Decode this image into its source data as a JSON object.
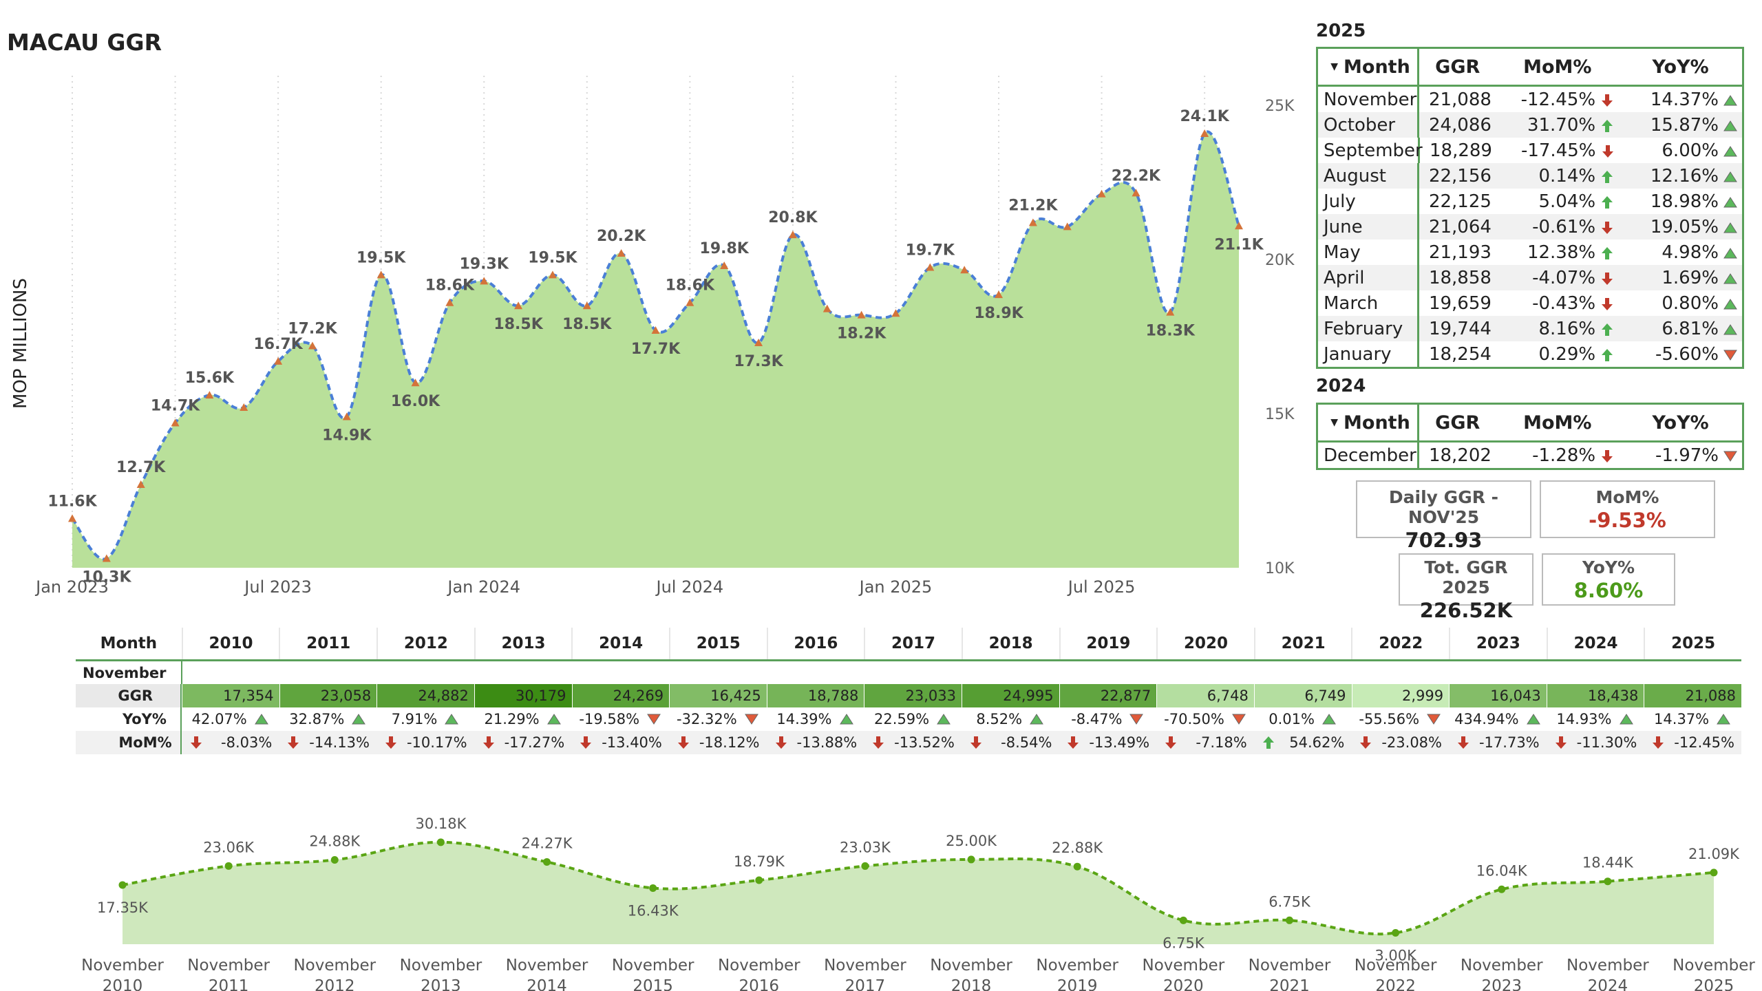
{
  "title": "MACAU GGR",
  "colors": {
    "area_fill": "#b9e09a",
    "line": "#4a7fd6",
    "marker": "#d4733a",
    "table_border": "#5aa05a",
    "down": "#c0392b",
    "up": "#4caf50",
    "bottom_line": "#5aa514",
    "bottom_fill": "#cfe8bd"
  },
  "chart_data": [
    {
      "type": "area",
      "title": "MACAU GGR",
      "ylabel": "MOP MILLIONS",
      "xlabel": "",
      "ylim": [
        10000,
        25000
      ],
      "yticks": [
        "10K",
        "15K",
        "20K",
        "25K"
      ],
      "xtick_labels": [
        "Jan 2023",
        "Jul 2023",
        "Jan 2024",
        "Jul 2024",
        "Jan 2025",
        "Jul 2025"
      ],
      "x": [
        "2023-01",
        "2023-02",
        "2023-03",
        "2023-04",
        "2023-05",
        "2023-06",
        "2023-07",
        "2023-08",
        "2023-09",
        "2023-10",
        "2023-11",
        "2023-12",
        "2024-01",
        "2024-02",
        "2024-03",
        "2024-04",
        "2024-05",
        "2024-06",
        "2024-07",
        "2024-08",
        "2024-09",
        "2024-10",
        "2024-11",
        "2024-12",
        "2025-01",
        "2025-02",
        "2025-03",
        "2025-04",
        "2025-05",
        "2025-06",
        "2025-07",
        "2025-08",
        "2025-09",
        "2025-10",
        "2025-11"
      ],
      "values": [
        11600,
        10300,
        12700,
        14700,
        15600,
        15200,
        16700,
        17200,
        14900,
        19500,
        16000,
        18600,
        19300,
        18500,
        19500,
        18500,
        20200,
        17700,
        18600,
        19800,
        17300,
        20800,
        18400,
        18200,
        18254,
        19744,
        19659,
        18858,
        21193,
        21064,
        22125,
        22156,
        18289,
        24086,
        21088
      ],
      "data_labels": [
        "11.6K",
        "10.3K",
        "12.7K",
        "14.7K",
        "15.6K",
        "",
        "16.7K",
        "17.2K",
        "14.9K",
        "19.5K",
        "16.0K",
        "18.6K",
        "19.3K",
        "18.5K",
        "19.5K",
        "18.5K",
        "20.2K",
        "17.7K",
        "18.6K",
        "19.8K",
        "17.3K",
        "20.8K",
        "",
        "18.2K",
        "",
        "19.7K",
        "",
        "18.9K",
        "21.2K",
        "",
        "",
        "22.2K",
        "18.3K",
        "24.1K",
        "21.1K"
      ]
    },
    {
      "type": "area",
      "title": "",
      "categories": [
        "November 2010",
        "November 2011",
        "November 2012",
        "November 2013",
        "November 2014",
        "November 2015",
        "November 2016",
        "November 2017",
        "November 2018",
        "November 2019",
        "November 2020",
        "November 2021",
        "November 2022",
        "November 2023",
        "November 2024",
        "November 2025"
      ],
      "values": [
        17354,
        23058,
        24882,
        30179,
        24269,
        16425,
        18788,
        23033,
        24995,
        22877,
        6748,
        6749,
        2999,
        16043,
        18438,
        21088
      ],
      "data_labels": [
        "17.35K",
        "23.06K",
        "24.88K",
        "30.18K",
        "24.27K",
        "16.43K",
        "18.79K",
        "23.03K",
        "25.00K",
        "22.88K",
        "6.75K",
        "6.75K",
        "3.00K",
        "16.04K",
        "18.44K",
        "21.09K"
      ]
    }
  ],
  "table_2025": {
    "year": "2025",
    "headers": {
      "month": "Month",
      "ggr": "GGR",
      "mom": "MoM%",
      "yoy": "YoY%"
    },
    "rows": [
      {
        "month": "November",
        "ggr": "21,088",
        "mom": "-12.45%",
        "mom_dir": "down",
        "yoy": "14.37%",
        "yoy_dir": "up"
      },
      {
        "month": "October",
        "ggr": "24,086",
        "mom": "31.70%",
        "mom_dir": "up",
        "yoy": "15.87%",
        "yoy_dir": "up"
      },
      {
        "month": "September",
        "ggr": "18,289",
        "mom": "-17.45%",
        "mom_dir": "down",
        "yoy": "6.00%",
        "yoy_dir": "up"
      },
      {
        "month": "August",
        "ggr": "22,156",
        "mom": "0.14%",
        "mom_dir": "up",
        "yoy": "12.16%",
        "yoy_dir": "up"
      },
      {
        "month": "July",
        "ggr": "22,125",
        "mom": "5.04%",
        "mom_dir": "up",
        "yoy": "18.98%",
        "yoy_dir": "up"
      },
      {
        "month": "June",
        "ggr": "21,064",
        "mom": "-0.61%",
        "mom_dir": "down",
        "yoy": "19.05%",
        "yoy_dir": "up"
      },
      {
        "month": "May",
        "ggr": "21,193",
        "mom": "12.38%",
        "mom_dir": "up",
        "yoy": "4.98%",
        "yoy_dir": "up"
      },
      {
        "month": "April",
        "ggr": "18,858",
        "mom": "-4.07%",
        "mom_dir": "down",
        "yoy": "1.69%",
        "yoy_dir": "up"
      },
      {
        "month": "March",
        "ggr": "19,659",
        "mom": "-0.43%",
        "mom_dir": "down",
        "yoy": "0.80%",
        "yoy_dir": "up"
      },
      {
        "month": "February",
        "ggr": "19,744",
        "mom": "8.16%",
        "mom_dir": "up",
        "yoy": "6.81%",
        "yoy_dir": "up"
      },
      {
        "month": "January",
        "ggr": "18,254",
        "mom": "0.29%",
        "mom_dir": "up",
        "yoy": "-5.60%",
        "yoy_dir": "down"
      }
    ]
  },
  "table_2024": {
    "year": "2024",
    "headers": {
      "month": "Month",
      "ggr": "GGR",
      "mom": "MoM%",
      "yoy": "YoY%"
    },
    "rows": [
      {
        "month": "December",
        "ggr": "18,202",
        "mom": "-1.28%",
        "mom_dir": "down",
        "yoy": "-1.97%",
        "yoy_dir": "down"
      }
    ]
  },
  "kpis": {
    "daily_ggr": {
      "label": "Daily GGR - NOV'25",
      "value": "702.93"
    },
    "mom": {
      "label": "MoM%",
      "value": "-9.53%"
    },
    "tot_ggr": {
      "label": "Tot. GGR 2025",
      "value": "226.52K"
    },
    "yoy": {
      "label": "YoY%",
      "value": "8.60%"
    }
  },
  "nov_table": {
    "month_header": "Month",
    "month_value": "November",
    "row_labels": {
      "ggr": "GGR",
      "yoy": "YoY%",
      "mom": "MoM%"
    },
    "years": [
      "2010",
      "2011",
      "2012",
      "2013",
      "2014",
      "2015",
      "2016",
      "2017",
      "2018",
      "2019",
      "2020",
      "2021",
      "2022",
      "2023",
      "2024",
      "2025"
    ],
    "ggr": [
      "17,354",
      "23,058",
      "24,882",
      "30,179",
      "24,269",
      "16,425",
      "18,788",
      "23,033",
      "24,995",
      "22,877",
      "6,748",
      "6,749",
      "2,999",
      "16,043",
      "18,438",
      "21,088"
    ],
    "ggr_values": [
      17354,
      23058,
      24882,
      30179,
      24269,
      16425,
      18788,
      23033,
      24995,
      22877,
      6748,
      6749,
      2999,
      16043,
      18438,
      21088
    ],
    "yoy": [
      "42.07%",
      "32.87%",
      "7.91%",
      "21.29%",
      "-19.58%",
      "-32.32%",
      "14.39%",
      "22.59%",
      "8.52%",
      "-8.47%",
      "-70.50%",
      "0.01%",
      "-55.56%",
      "434.94%",
      "14.93%",
      "14.37%"
    ],
    "yoy_dir": [
      "up",
      "up",
      "up",
      "up",
      "down",
      "down",
      "up",
      "up",
      "up",
      "down",
      "down",
      "up",
      "down",
      "up",
      "up",
      "up"
    ],
    "mom": [
      "-8.03%",
      "-14.13%",
      "-10.17%",
      "-17.27%",
      "-13.40%",
      "-18.12%",
      "-13.88%",
      "-13.52%",
      "-8.54%",
      "-13.49%",
      "-7.18%",
      "54.62%",
      "-23.08%",
      "-17.73%",
      "-11.30%",
      "-12.45%"
    ],
    "mom_dir": [
      "down",
      "down",
      "down",
      "down",
      "down",
      "down",
      "down",
      "down",
      "down",
      "down",
      "down",
      "up",
      "down",
      "down",
      "down",
      "down"
    ]
  }
}
